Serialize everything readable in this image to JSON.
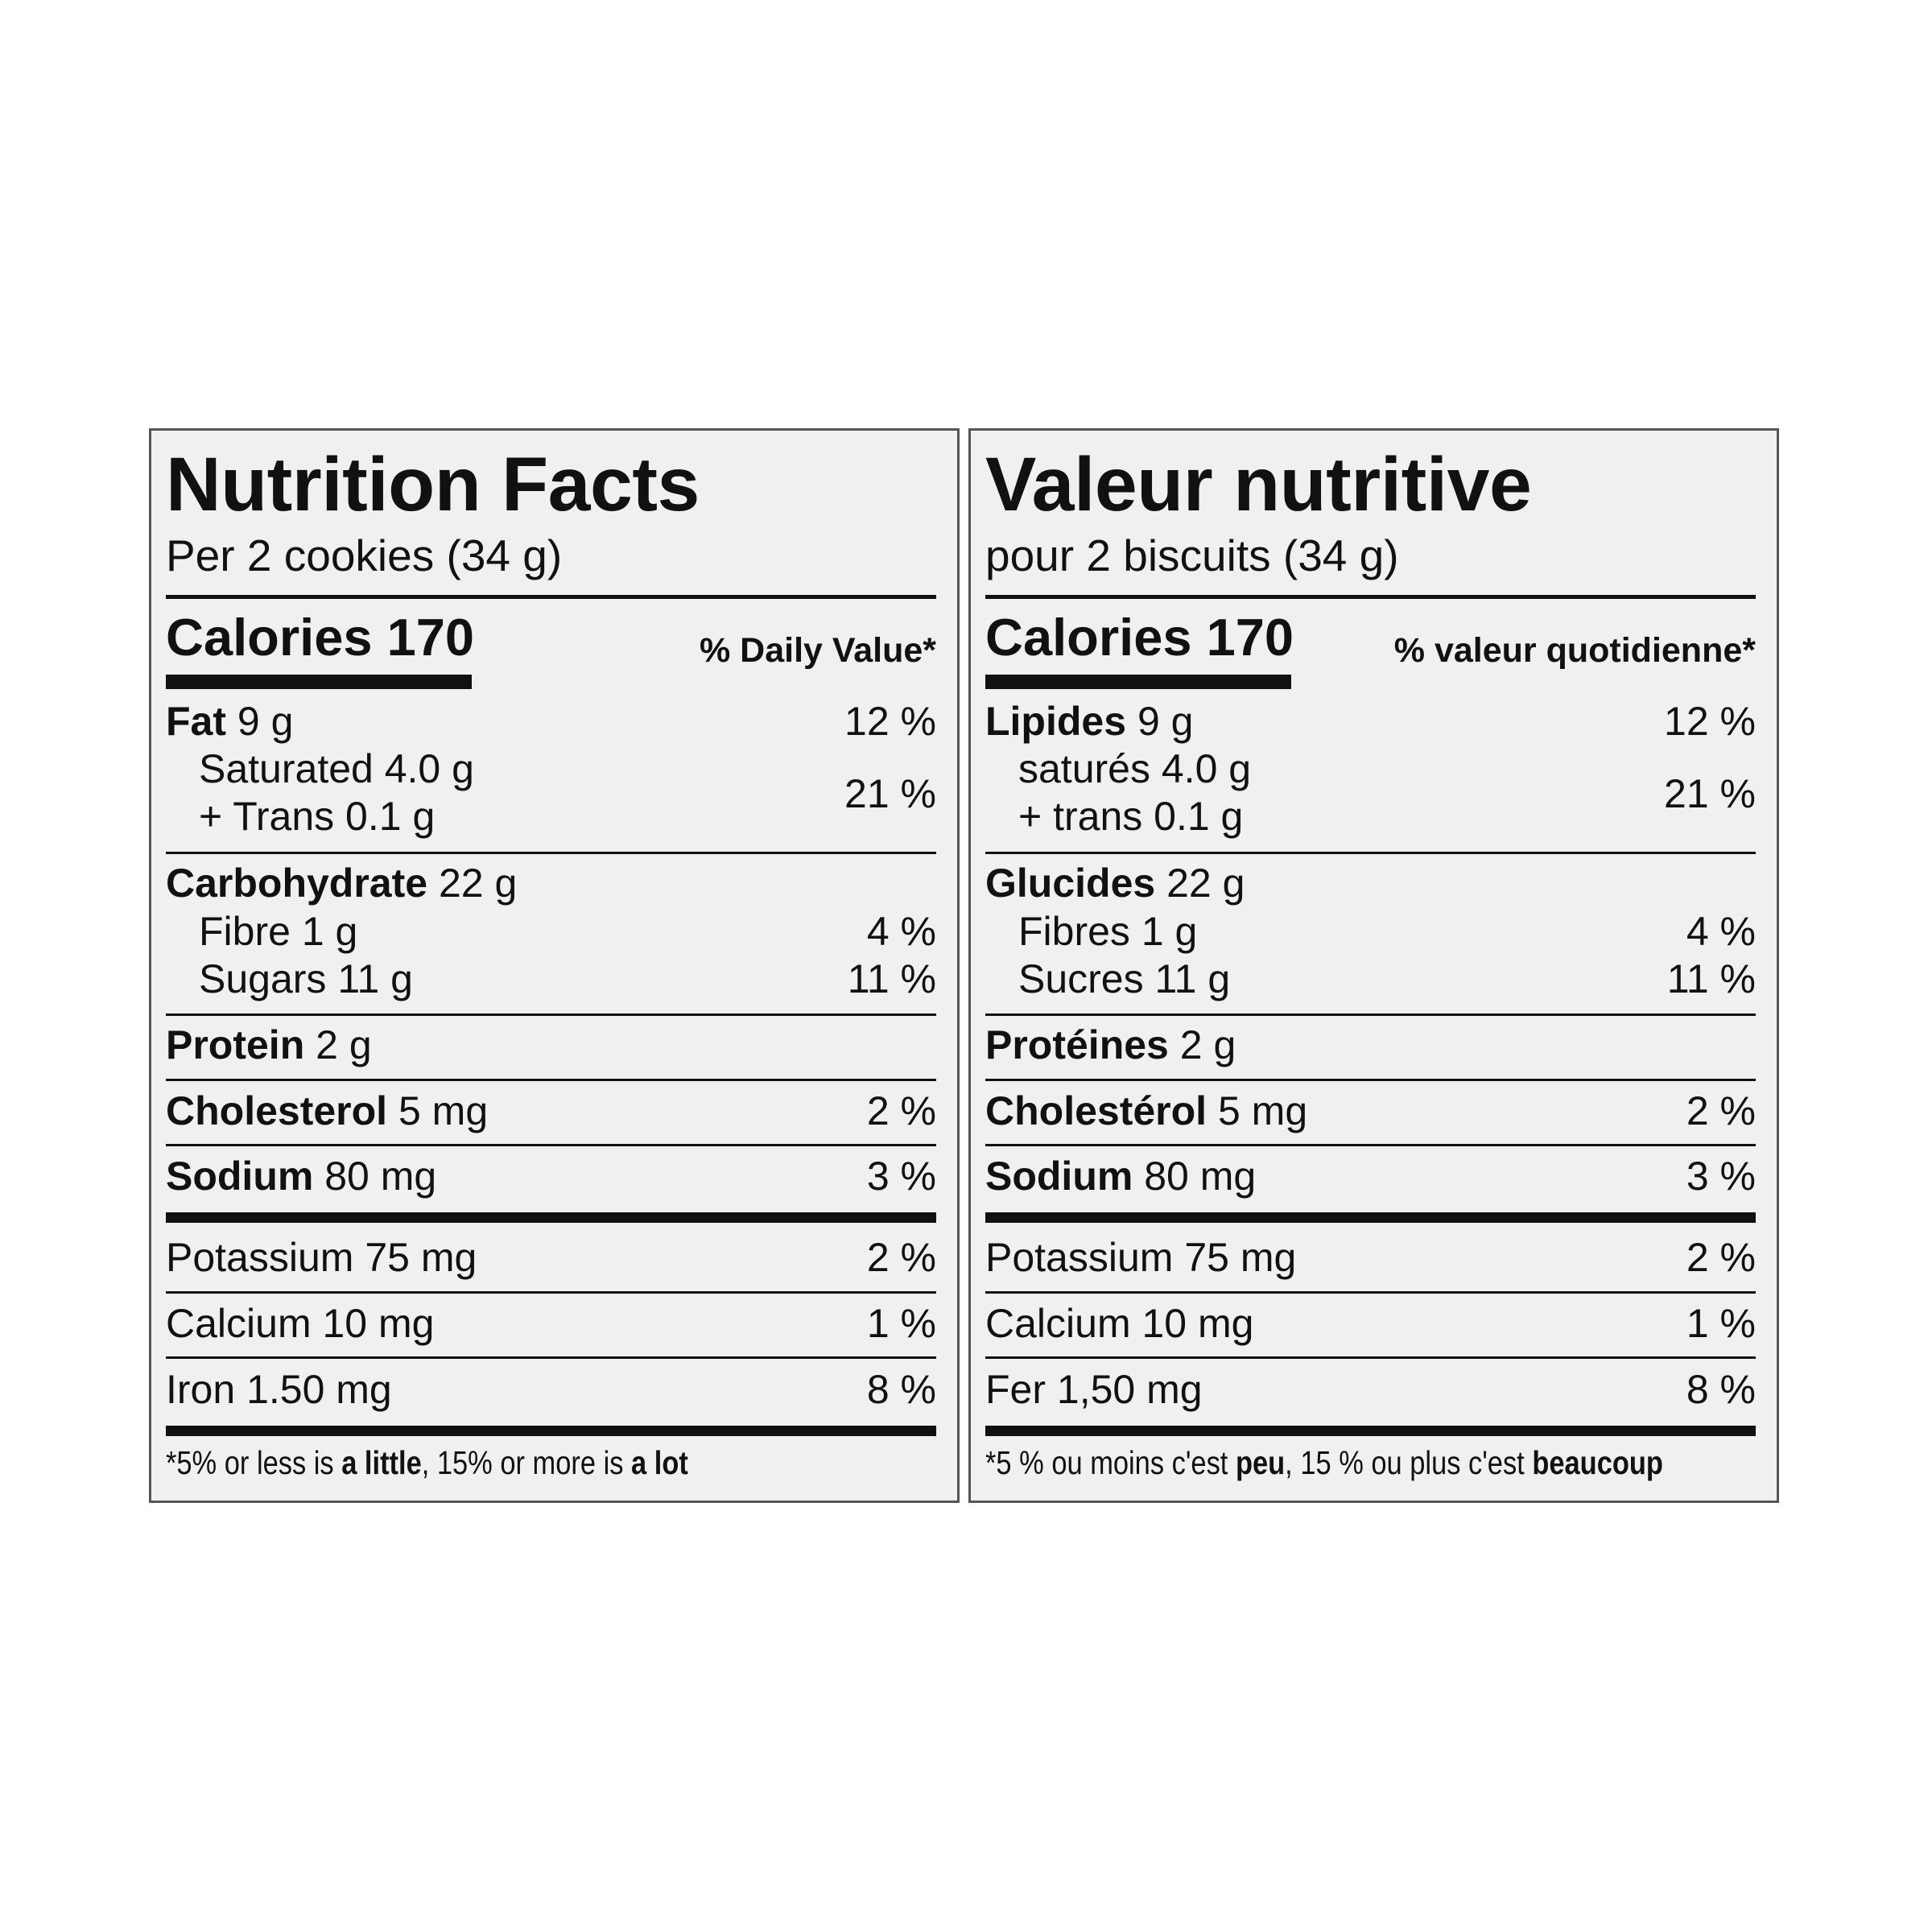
{
  "labels": [
    {
      "title": "Nutrition Facts",
      "serving": "Per 2 cookies (34 g)",
      "calories": "Calories 170",
      "daily_value_header": "% Daily Value*",
      "fat": {
        "name": "Fat",
        "amount": "9 g",
        "dv": "12 %"
      },
      "saturated": {
        "name": "Saturated",
        "amount": "4.0 g"
      },
      "trans": {
        "name": "+ Trans",
        "amount": "0.1 g"
      },
      "sat_trans_dv": "21 %",
      "carbohydrate": {
        "name": "Carbohydrate",
        "amount": "22 g"
      },
      "fibre": {
        "name": "Fibre",
        "amount": "1 g",
        "dv": "4 %"
      },
      "sugars": {
        "name": "Sugars",
        "amount": "11 g",
        "dv": "11 %"
      },
      "protein": {
        "name": "Protein",
        "amount": "2 g"
      },
      "cholesterol": {
        "name": "Cholesterol",
        "amount": "5 mg",
        "dv": "2 %"
      },
      "sodium": {
        "name": "Sodium",
        "amount": "80 mg",
        "dv": "3 %"
      },
      "potassium": {
        "name": "Potassium",
        "amount": "75 mg",
        "dv": "2 %"
      },
      "calcium": {
        "name": "Calcium",
        "amount": "10 mg",
        "dv": "1 %"
      },
      "iron": {
        "name": "Iron",
        "amount": "1.50 mg",
        "dv": "8 %"
      },
      "footnote": {
        "p1": "*5% or less is ",
        "b1": "a little",
        "p2": ", 15% or more is ",
        "b2": "a lot"
      }
    },
    {
      "title": "Valeur nutritive",
      "serving": "pour 2 biscuits (34 g)",
      "calories": "Calories 170",
      "daily_value_header": "% valeur quotidienne*",
      "fat": {
        "name": "Lipides",
        "amount": "9 g",
        "dv": "12 %"
      },
      "saturated": {
        "name": "saturés",
        "amount": "4.0 g"
      },
      "trans": {
        "name": "+ trans",
        "amount": "0.1 g"
      },
      "sat_trans_dv": "21 %",
      "carbohydrate": {
        "name": "Glucides",
        "amount": "22 g"
      },
      "fibre": {
        "name": "Fibres",
        "amount": "1 g",
        "dv": "4 %"
      },
      "sugars": {
        "name": "Sucres",
        "amount": "11 g",
        "dv": "11 %"
      },
      "protein": {
        "name": "Protéines",
        "amount": "2 g"
      },
      "cholesterol": {
        "name": "Cholestérol",
        "amount": "5 mg",
        "dv": "2 %"
      },
      "sodium": {
        "name": "Sodium",
        "amount": "80 mg",
        "dv": "3 %"
      },
      "potassium": {
        "name": "Potassium",
        "amount": "75 mg",
        "dv": "2 %"
      },
      "calcium": {
        "name": "Calcium",
        "amount": "10 mg",
        "dv": "1 %"
      },
      "iron": {
        "name": "Fer",
        "amount": "1,50 mg",
        "dv": "8 %"
      },
      "footnote": {
        "p1": "*5 % ou moins c'est ",
        "b1": "peu",
        "p2": ", 15 % ou plus c'est ",
        "b2": "beaucoup"
      }
    }
  ]
}
